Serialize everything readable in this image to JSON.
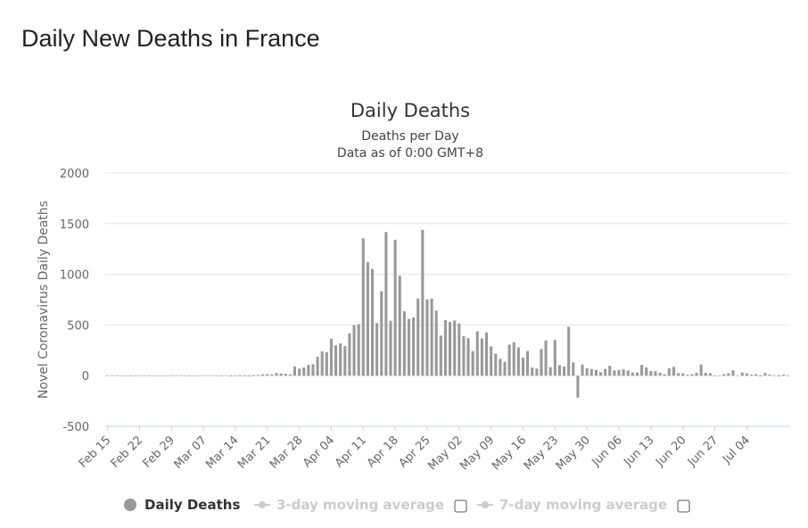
{
  "page": {
    "title": "Daily New Deaths in France"
  },
  "chart_data": {
    "type": "bar",
    "title": "Daily Deaths",
    "subtitle_lines": [
      "Deaths per Day",
      "Data as of 0:00 GMT+8"
    ],
    "ylabel": "Novel Coronavirus Daily Deaths",
    "xlabel": "",
    "ylim": [
      -500,
      2000
    ],
    "yticks": [
      2000,
      1500,
      1000,
      500,
      0,
      -500
    ],
    "grid": true,
    "x_start": "Feb 15",
    "x_end": "Jul 05",
    "xtick_labels": [
      "Feb 15",
      "Feb 22",
      "Feb 29",
      "Mar 07",
      "Mar 14",
      "Mar 21",
      "Mar 28",
      "Apr 04",
      "Apr 11",
      "Apr 18",
      "Apr 25",
      "May 02",
      "May 09",
      "May 16",
      "May 23",
      "May 30",
      "Jun 06",
      "Jun 13",
      "Jun 20",
      "Jun 27",
      "Jul 04"
    ],
    "series": [
      {
        "name": "Daily Deaths",
        "color": "#999999",
        "values": [
          0,
          0,
          0,
          0,
          0,
          0,
          0,
          0,
          0,
          0,
          0,
          0,
          0,
          0,
          0,
          0,
          0,
          0,
          0,
          0,
          0,
          0,
          0,
          0,
          0,
          0,
          0,
          2,
          0,
          3,
          2,
          2,
          5,
          6,
          13,
          15,
          12,
          27,
          22,
          18,
          12,
          91,
          69,
          80,
          107,
          112,
          186,
          240,
          231,
          365,
          299,
          319,
          292,
          418,
          499,
          509,
          1355,
          1120,
          1053,
          518,
          833,
          1417,
          541,
          1341,
          987,
          635,
          561,
          574,
          762,
          1438,
          753,
          761,
          642,
          395,
          547,
          531,
          544,
          516,
          389,
          369,
          242,
          437,
          367,
          427,
          289,
          218,
          166,
          135,
          306,
          330,
          278,
          178,
          243,
          80,
          70,
          263,
          348,
          83,
          351,
          104,
          90,
          483,
          131,
          -217,
          110,
          74,
          65,
          57,
          35,
          66,
          98,
          52,
          57,
          63,
          50,
          31,
          31,
          107,
          81,
          46,
          44,
          29,
          13,
          73,
          87,
          24,
          23,
          9,
          14,
          28,
          111,
          29,
          24,
          0,
          0,
          14,
          24,
          53,
          0,
          30,
          23,
          9,
          15,
          3,
          26,
          11,
          0,
          3,
          10,
          0
        ]
      }
    ],
    "legend": {
      "position": "bottom",
      "items": [
        {
          "label": "Daily Deaths",
          "enabled": true,
          "color": "#999999"
        },
        {
          "label": "3-day moving average",
          "enabled": false,
          "color": "#cccccc"
        },
        {
          "label": "7-day moving average",
          "enabled": false,
          "color": "#cccccc"
        }
      ]
    }
  }
}
